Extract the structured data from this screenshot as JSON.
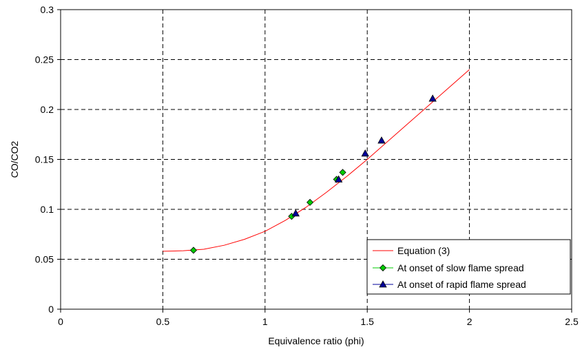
{
  "chart_data": {
    "type": "scatter",
    "xlabel": "Equivalence ratio (phi)",
    "ylabel": "CO/CO2",
    "xlim": [
      0,
      2.5
    ],
    "ylim": [
      0,
      0.3
    ],
    "xticks": [
      "0",
      "0.5",
      "1",
      "1.5",
      "2",
      "2.5"
    ],
    "yticks": [
      "0",
      "0.05",
      "0.1",
      "0.15",
      "0.2",
      "0.25",
      "0.3"
    ],
    "xtick_values": [
      0,
      0.5,
      1,
      1.5,
      2,
      2.5
    ],
    "ytick_values": [
      0,
      0.05,
      0.1,
      0.15,
      0.2,
      0.25,
      0.3
    ],
    "grid": true,
    "legend_position": "bottom-right",
    "series": [
      {
        "name": "Equation (3)",
        "kind": "line",
        "color": "#ff0000",
        "x": [
          0.5,
          0.6,
          0.7,
          0.8,
          0.9,
          1.0,
          1.1,
          1.2,
          1.3,
          1.4,
          1.5,
          1.6,
          1.7,
          1.8,
          1.9,
          2.0
        ],
        "y": [
          0.058,
          0.0585,
          0.06,
          0.064,
          0.07,
          0.078,
          0.089,
          0.102,
          0.117,
          0.133,
          0.15,
          0.168,
          0.186,
          0.204,
          0.222,
          0.24
        ]
      },
      {
        "name": "At onset of slow flame spread",
        "kind": "marker",
        "marker": "diamond",
        "color": "#00cc00",
        "x": [
          0.65,
          1.13,
          1.22,
          1.35,
          1.38
        ],
        "y": [
          0.059,
          0.093,
          0.107,
          0.13,
          0.137
        ]
      },
      {
        "name": "At onset of rapid flame spread",
        "kind": "marker",
        "marker": "triangle",
        "color": "#000099",
        "x": [
          1.15,
          1.36,
          1.49,
          1.57,
          1.82
        ],
        "y": [
          0.096,
          0.13,
          0.156,
          0.169,
          0.211
        ]
      }
    ]
  }
}
